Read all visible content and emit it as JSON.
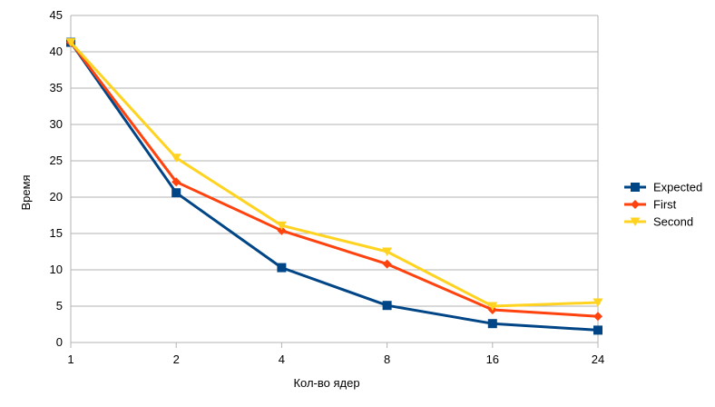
{
  "chart_data": {
    "type": "line",
    "title": "",
    "xlabel": "Кол-во ядер",
    "ylabel": "Время",
    "categories": [
      "1",
      "2",
      "4",
      "8",
      "16",
      "24"
    ],
    "yticks": [
      "0",
      "5",
      "10",
      "15",
      "20",
      "25",
      "30",
      "35",
      "40",
      "45"
    ],
    "ylim": [
      0,
      45
    ],
    "grid": true,
    "legend_position": "right",
    "series": [
      {
        "name": "Expected",
        "color": "#004586",
        "marker": "square",
        "values": [
          41.3,
          20.6,
          10.3,
          5.1,
          2.6,
          1.7
        ]
      },
      {
        "name": "First",
        "color": "#ff420e",
        "marker": "diamond",
        "values": [
          41.3,
          22.1,
          15.4,
          10.8,
          4.5,
          3.6
        ]
      },
      {
        "name": "Second",
        "color": "#ffd320",
        "marker": "triangle-down",
        "values": [
          41.3,
          25.4,
          16.1,
          12.5,
          5.0,
          5.5
        ]
      }
    ]
  }
}
